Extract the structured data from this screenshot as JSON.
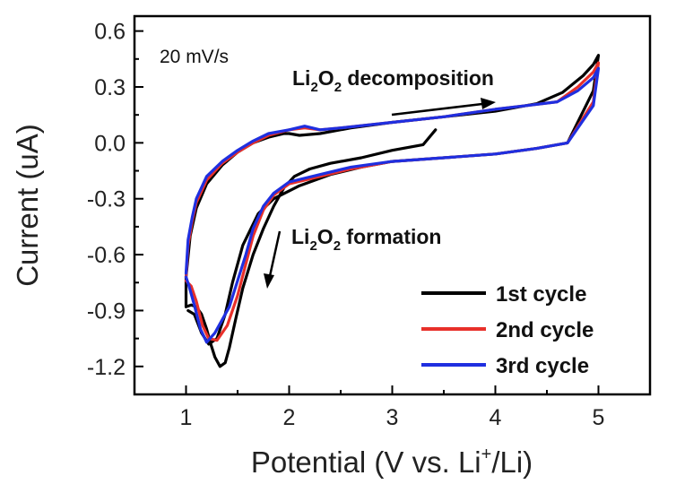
{
  "chart_data": {
    "type": "line",
    "xlabel": {
      "main": "Potential (V vs. Li",
      "sup": "+",
      "tail": "/Li)"
    },
    "ylabel": "Current (uA)",
    "xlim": [
      0.5,
      5.5
    ],
    "ylim": [
      -1.35,
      0.68
    ],
    "xticks": [
      "1",
      "2",
      "3",
      "4",
      "5"
    ],
    "yticks": [
      "0.6",
      "0.3",
      "0.0",
      "-0.3",
      "-0.6",
      "-0.9",
      "-1.2"
    ],
    "grid": false,
    "legend_position": "bottom-right",
    "annotations": {
      "rate": "20 mV/s",
      "decomposition": {
        "a": "Li",
        "s1": "2",
        "b": "O",
        "s2": "2",
        "c": " decomposition"
      },
      "formation": {
        "a": "Li",
        "s1": "2",
        "b": "O",
        "s2": "2",
        "c": " formation"
      }
    },
    "series": [
      {
        "name": "1st cycle",
        "color": "#000000",
        "x": [
          3.42,
          3.3,
          3.0,
          2.7,
          2.4,
          2.2,
          2.05,
          1.95,
          1.85,
          1.75,
          1.65,
          1.55,
          1.48,
          1.42,
          1.38,
          1.33,
          1.28,
          1.24,
          1.2,
          1.15,
          1.1,
          1.05,
          1.0,
          1.0,
          1.04,
          1.1,
          1.2,
          1.35,
          1.5,
          1.65,
          1.8,
          1.95,
          2.0,
          2.1,
          2.3,
          2.6,
          3.0,
          3.5,
          4.0,
          4.4,
          4.65,
          4.85,
          4.95,
          5.0,
          4.95,
          4.7,
          4.4,
          4.0,
          3.5,
          3.0,
          2.7,
          2.4,
          2.1,
          1.85,
          1.7,
          1.55,
          1.45,
          1.38,
          1.3,
          1.22,
          1.15,
          1.08,
          1.02
        ],
        "y": [
          0.07,
          -0.01,
          -0.04,
          -0.08,
          -0.11,
          -0.14,
          -0.18,
          -0.24,
          -0.34,
          -0.46,
          -0.6,
          -0.78,
          -0.95,
          -1.1,
          -1.18,
          -1.2,
          -1.15,
          -1.08,
          -1.0,
          -0.92,
          -0.88,
          -0.87,
          -0.88,
          -0.72,
          -0.5,
          -0.35,
          -0.22,
          -0.12,
          -0.05,
          0.0,
          0.03,
          0.05,
          0.05,
          0.04,
          0.05,
          0.08,
          0.11,
          0.14,
          0.17,
          0.21,
          0.27,
          0.36,
          0.42,
          0.47,
          0.28,
          0.0,
          -0.03,
          -0.06,
          -0.08,
          -0.1,
          -0.13,
          -0.17,
          -0.23,
          -0.3,
          -0.38,
          -0.55,
          -0.75,
          -0.92,
          -1.05,
          -1.08,
          -1.02,
          -0.92,
          -0.9
        ]
      },
      {
        "name": "2nd cycle",
        "color": "#e8302a",
        "x": [
          1.0,
          1.02,
          1.06,
          1.1,
          1.2,
          1.35,
          1.5,
          1.65,
          1.8,
          2.0,
          2.15,
          2.3,
          2.5,
          3.0,
          3.5,
          4.0,
          4.3,
          4.6,
          4.8,
          4.95,
          5.0,
          4.95,
          4.7,
          4.4,
          4.0,
          3.5,
          3.0,
          2.6,
          2.3,
          2.0,
          1.85,
          1.75,
          1.65,
          1.58,
          1.5,
          1.4,
          1.3,
          1.22,
          1.16,
          1.1,
          1.05,
          1.0
        ],
        "y": [
          -0.72,
          -0.55,
          -0.42,
          -0.32,
          -0.2,
          -0.11,
          -0.05,
          0.0,
          0.04,
          0.07,
          0.08,
          0.07,
          0.08,
          0.11,
          0.14,
          0.18,
          0.2,
          0.22,
          0.3,
          0.38,
          0.43,
          0.22,
          0.0,
          -0.03,
          -0.06,
          -0.08,
          -0.1,
          -0.14,
          -0.18,
          -0.22,
          -0.28,
          -0.36,
          -0.5,
          -0.65,
          -0.82,
          -0.98,
          -1.06,
          -1.05,
          -0.98,
          -0.85,
          -0.77,
          -0.74
        ]
      },
      {
        "name": "3rd cycle",
        "color": "#1f2fe0",
        "x": [
          1.0,
          1.02,
          1.06,
          1.1,
          1.2,
          1.35,
          1.5,
          1.65,
          1.8,
          2.0,
          2.15,
          2.3,
          2.5,
          3.0,
          3.5,
          4.0,
          4.3,
          4.6,
          4.8,
          4.95,
          5.0,
          4.95,
          4.7,
          4.4,
          4.0,
          3.5,
          3.0,
          2.6,
          2.3,
          2.0,
          1.85,
          1.75,
          1.65,
          1.58,
          1.5,
          1.42,
          1.35,
          1.28,
          1.2,
          1.14,
          1.08,
          1.03,
          1.0
        ],
        "y": [
          -0.7,
          -0.52,
          -0.4,
          -0.3,
          -0.18,
          -0.1,
          -0.04,
          0.01,
          0.05,
          0.07,
          0.09,
          0.07,
          0.08,
          0.11,
          0.14,
          0.18,
          0.2,
          0.22,
          0.28,
          0.35,
          0.4,
          0.2,
          0.0,
          -0.03,
          -0.06,
          -0.08,
          -0.1,
          -0.13,
          -0.17,
          -0.21,
          -0.27,
          -0.34,
          -0.46,
          -0.6,
          -0.74,
          -0.88,
          -0.95,
          -1.02,
          -1.07,
          -1.0,
          -0.87,
          -0.77,
          -0.72
        ]
      }
    ]
  }
}
